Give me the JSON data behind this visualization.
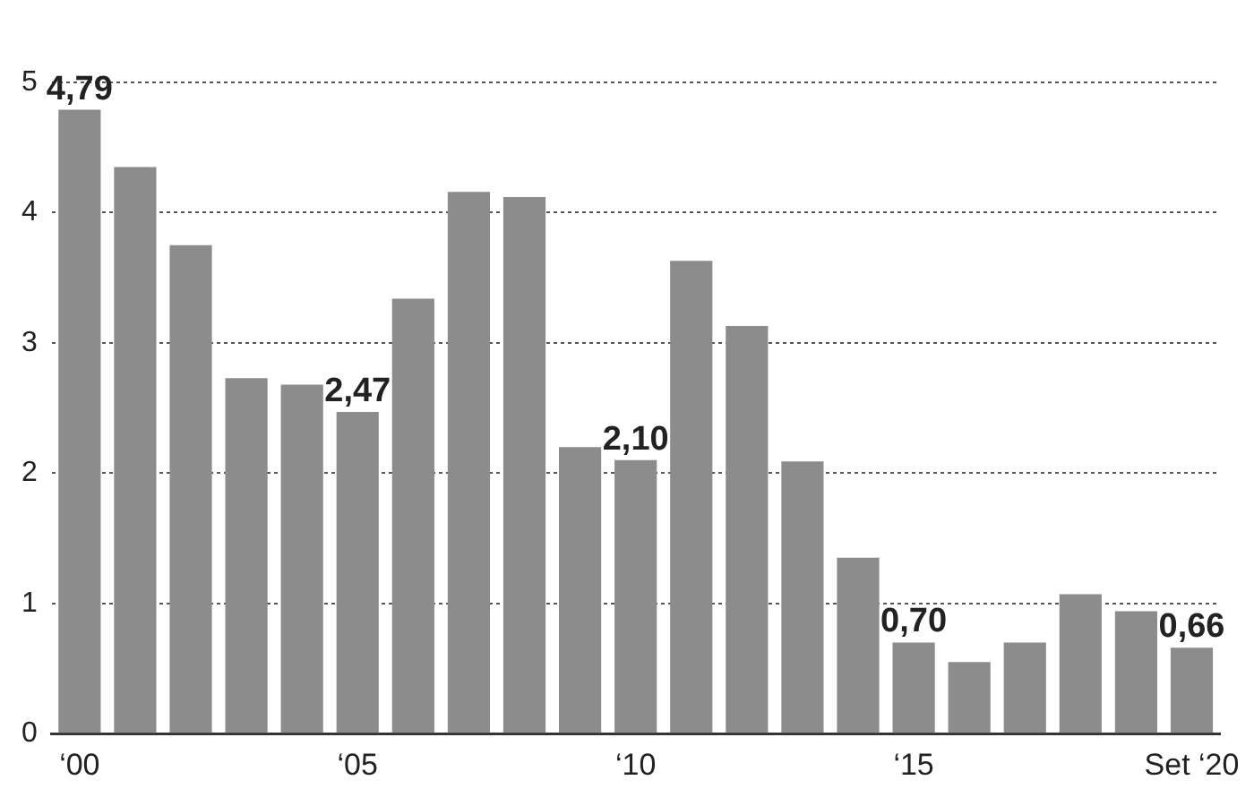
{
  "chart_data": {
    "type": "bar",
    "categories": [
      "‘00",
      null,
      null,
      null,
      null,
      "‘05",
      null,
      null,
      null,
      null,
      "‘10",
      null,
      null,
      null,
      null,
      "‘15",
      null,
      null,
      null,
      null,
      "Set ‘20"
    ],
    "values": [
      4.79,
      4.35,
      3.75,
      2.73,
      2.68,
      2.47,
      3.34,
      4.16,
      4.12,
      2.2,
      2.1,
      3.63,
      3.13,
      2.09,
      1.35,
      0.7,
      0.55,
      0.7,
      1.07,
      0.94,
      0.66
    ],
    "annotations": [
      {
        "text": "4,79",
        "x": "‘00",
        "y": 4.79
      },
      {
        "text": "2,47",
        "x": "‘05",
        "y": 2.47
      },
      {
        "text": "2,10",
        "x": "‘10",
        "y": 2.1
      },
      {
        "text": "0,70",
        "x": "‘15",
        "y": 0.7
      },
      {
        "text": "0,66",
        "x": "Set ‘20",
        "y": 0.66
      }
    ],
    "color": "#8c8c8c",
    "ylim": [
      0,
      5
    ],
    "yticks": [
      0,
      1,
      2,
      3,
      4,
      5
    ],
    "grid": "y",
    "legend": false
  }
}
